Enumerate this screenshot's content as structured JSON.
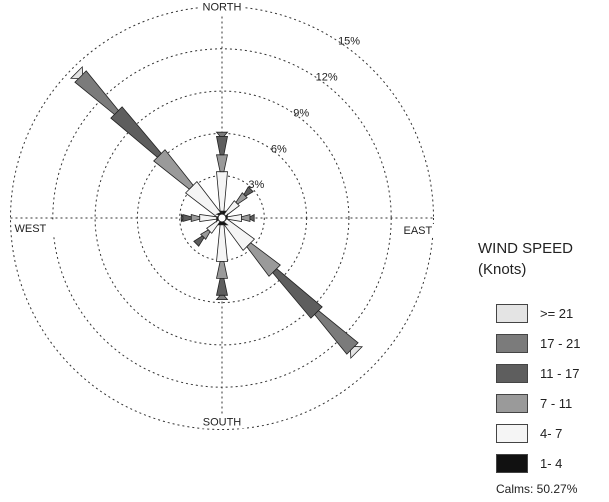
{
  "chart_data": {
    "type": "wind-rose",
    "title": "",
    "directions": [
      "N",
      "NNE",
      "NE",
      "ENE",
      "E",
      "ESE",
      "SE",
      "SSE",
      "S",
      "SSW",
      "SW",
      "WSW",
      "W",
      "WNW",
      "NW",
      "NNW"
    ],
    "direction_angles_deg": [
      0,
      22.5,
      45,
      67.5,
      90,
      112.5,
      135,
      157.5,
      180,
      202.5,
      225,
      247.5,
      270,
      292.5,
      315,
      337.5
    ],
    "compass_labels": [
      "NORTH",
      "EAST",
      "SOUTH",
      "WEST"
    ],
    "rings_percent": [
      3,
      6,
      9,
      12,
      15
    ],
    "ring_labels": [
      "3%",
      "6%",
      "9%",
      "12%",
      "15%"
    ],
    "speed_bins": [
      {
        "name": "1- 4",
        "color": "#111111"
      },
      {
        "name": "4- 7",
        "color": "#f5f5f5"
      },
      {
        "name": "7 - 11",
        "color": "#9a9a9a"
      },
      {
        "name": "11 - 17",
        "color": "#5e5e5e"
      },
      {
        "name": "17 - 21",
        "color": "#7b7b7b"
      },
      {
        "name": ">= 21",
        "color": "#e4e4e4"
      }
    ],
    "series": [
      {
        "name": "1- 4",
        "values": [
          0.2,
          0,
          0,
          0,
          0.1,
          0,
          0,
          0,
          0.2,
          0,
          0,
          0,
          0.1,
          0,
          0,
          0.1
        ]
      },
      {
        "name": "4- 7",
        "values": [
          2.8,
          0,
          1.2,
          0,
          1.0,
          0,
          2.4,
          0,
          2.6,
          0,
          1.0,
          0,
          1.2,
          0,
          2.8,
          0
        ]
      },
      {
        "name": "7 - 11",
        "values": [
          1.2,
          0,
          0.8,
          0,
          0.6,
          0,
          2.6,
          0,
          1.2,
          0,
          0.6,
          0,
          0.6,
          0,
          3.2,
          0
        ]
      },
      {
        "name": "11 - 17",
        "values": [
          1.3,
          0,
          0.6,
          0,
          0.3,
          0,
          4.2,
          0,
          1.2,
          0,
          0.7,
          0,
          0.6,
          0,
          4.3,
          0
        ]
      },
      {
        "name": "17 - 21",
        "values": [
          0.3,
          0,
          0,
          0,
          0,
          0,
          3.6,
          0,
          0.3,
          0,
          0,
          0,
          0.1,
          0,
          3.6,
          0
        ]
      },
      {
        "name": ">= 21",
        "values": [
          0,
          0,
          0,
          0,
          0,
          0,
          0.4,
          0,
          0,
          0,
          0,
          0,
          0,
          0,
          0.4,
          0
        ]
      }
    ],
    "legend": {
      "title_line1": "WIND SPEED",
      "title_line2": "(Knots)",
      "items": [
        ">= 21",
        "17 - 21",
        "11 - 17",
        "7 - 11",
        "4- 7",
        "1- 4"
      ],
      "placement": "right"
    },
    "calms": "Calms: 50.27%",
    "grid": true
  }
}
